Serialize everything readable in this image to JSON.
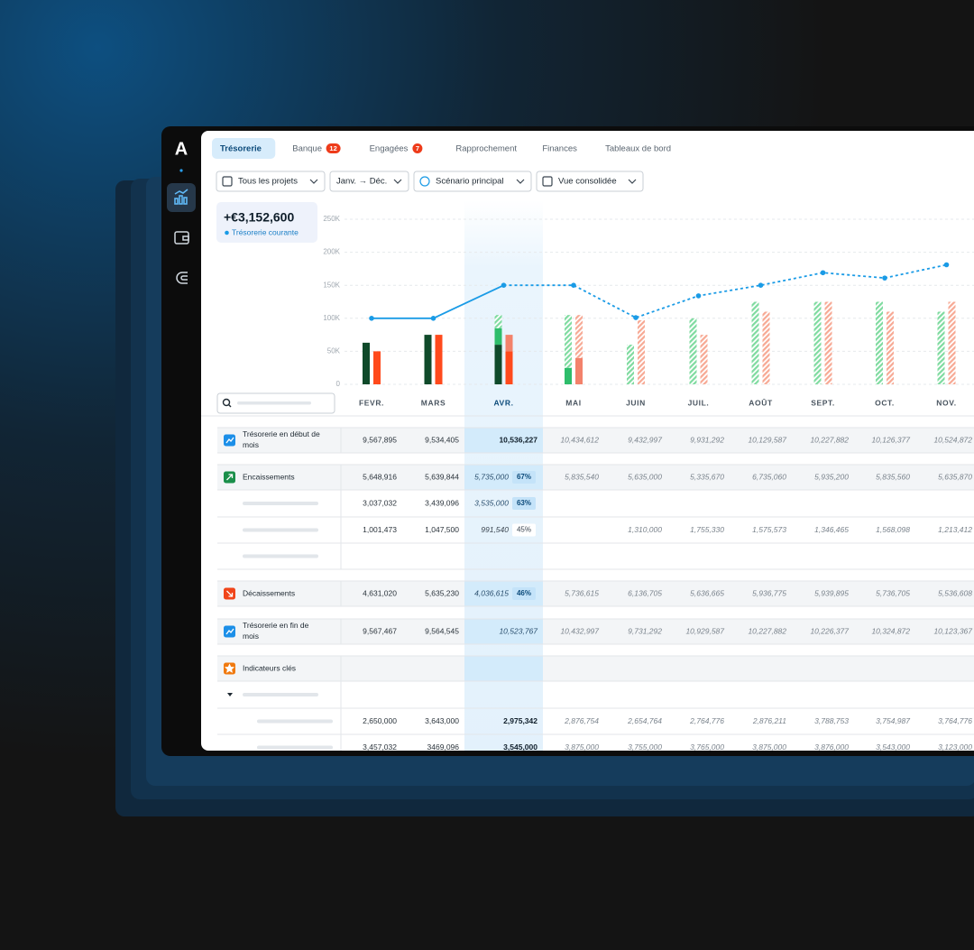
{
  "logo": "A",
  "tabs": [
    {
      "label": "Trésorerie"
    },
    {
      "label": "Banque",
      "badge": "12"
    },
    {
      "label": "Engagées",
      "badge": "7"
    },
    {
      "label": "Rapprochement"
    },
    {
      "label": "Finances"
    },
    {
      "label": "Tableaux de bord"
    }
  ],
  "filters": [
    "Tous les projets",
    "Janv. → Déc.",
    "Scénario principal",
    "Vue consolidée"
  ],
  "kpi": {
    "value": "+€3,152,600",
    "label": "Trésorerie courante"
  },
  "chart_data": {
    "type": "bar",
    "categories": [
      "FEVR.",
      "MARS",
      "AVR.",
      "MAI",
      "JUIN",
      "JUIL.",
      "AOÛT",
      "SEPT.",
      "OCT.",
      "NOV."
    ],
    "highlight": 2,
    "ylim": [
      0,
      250000
    ],
    "yticks": [
      0,
      {
        "value": 50000,
        "label": "50K"
      },
      {
        "value": 100000,
        "label": "100K"
      },
      {
        "value": 150000,
        "label": "150K"
      },
      {
        "value": 200000,
        "label": "200K"
      },
      {
        "value": 250000,
        "label": "250K"
      }
    ],
    "grid": true,
    "series": [
      {
        "color": "#0f4a2a",
        "stack": "in",
        "values": [
          63000,
          75000,
          60000,
          null,
          null,
          null,
          null,
          null,
          null,
          null
        ]
      },
      {
        "color": "#2ebd6b",
        "stack": "in",
        "values": [
          null,
          null,
          25000,
          25000,
          null,
          null,
          null,
          null,
          null,
          null
        ]
      },
      {
        "color": "#7fdba0",
        "stack": "in",
        "hatched": true,
        "values": [
          null,
          null,
          20000,
          80000,
          60000,
          100000,
          125000,
          125000,
          125000,
          110000
        ]
      },
      {
        "color": "#ff4a1c",
        "stack": "out",
        "values": [
          50000,
          75000,
          50000,
          null,
          null,
          null,
          null,
          null,
          null,
          null
        ]
      },
      {
        "color": "#f3826b",
        "stack": "out",
        "values": [
          null,
          null,
          25000,
          40000,
          null,
          null,
          null,
          null,
          null,
          null
        ]
      },
      {
        "color": "#f7a994",
        "stack": "out",
        "hatched": true,
        "values": [
          null,
          null,
          null,
          65000,
          97000,
          75000,
          110000,
          125000,
          110000,
          125000
        ]
      }
    ],
    "line": {
      "color": "#1a9be6",
      "dashed_from": 2,
      "values": [
        100000,
        100000,
        150000,
        150000,
        101000,
        134000,
        150000,
        169000,
        161000,
        181000
      ]
    }
  },
  "table": {
    "rows": [
      {
        "label": "Trésorerie en début de mois",
        "cells": [
          "9,567,895",
          "9,534,405",
          "10,536,227",
          "10,434,612",
          "9,432,997",
          "9,931,292",
          "10,129,587",
          "10,227,882",
          "10,126,377",
          "10,524,872"
        ]
      },
      {
        "label": "Encaissements",
        "cells": [
          "5,648,916",
          "5,639,844",
          {
            "value": "5,735,000",
            "badge": "67%"
          },
          "5,835,540",
          "5,635,000",
          "5,335,670",
          "6,735,060",
          "5,935,200",
          "5,835,560",
          "5,635,870"
        ]
      },
      {
        "cells": [
          "3,037,032",
          "3,439,096",
          {
            "value": "3,535,000",
            "badge": "63%"
          },
          null,
          null,
          null,
          null,
          null,
          null,
          null
        ]
      },
      {
        "cells": [
          "1,001,473",
          "1,047,500",
          {
            "value": "991,540",
            "badge": "45%"
          },
          null,
          "1,310,000",
          "1,755,330",
          "1,575,573",
          "1,346,465",
          "1,568,098",
          "1,213,412"
        ]
      },
      {
        "cells": [
          null,
          null,
          null,
          null,
          null,
          null,
          null,
          null,
          null,
          null
        ]
      },
      {
        "label": "Décaissements",
        "cells": [
          "4,631,020",
          "5,635,230",
          {
            "value": "4,036,615",
            "badge": "46%"
          },
          "5,736,615",
          "6,136,705",
          "5,636,665",
          "5,936,775",
          "5,939,895",
          "5,736,705",
          "5,536,608"
        ]
      },
      {
        "label": "Trésorerie en fin de mois",
        "cells": [
          "9,567,467",
          "9,564,545",
          "10,523,767",
          "10,432,997",
          "9,731,292",
          "10,929,587",
          "10,227,882",
          "10,226,377",
          "10,324,872",
          "10,123,367"
        ]
      },
      {
        "label": "Indicateurs clés",
        "cells": [
          null,
          null,
          null,
          null,
          null,
          null,
          null,
          null,
          null,
          null
        ]
      },
      {
        "cells": [
          null,
          null,
          null,
          null,
          null,
          null,
          null,
          null,
          null,
          null
        ]
      },
      {
        "cells": [
          "2,650,000",
          "3,643,000",
          "2,975,342",
          "2,876,754",
          "2,654,764",
          "2,764,776",
          "2,876,211",
          "3,788,753",
          "3,754,987",
          "3,764,776"
        ]
      },
      {
        "cells": [
          "3,457,032",
          "3469,096",
          "3,545,000",
          "3,875,000",
          "3,755,000",
          "3,765,000",
          "3,875,000",
          "3,876,000",
          "3,543,000",
          "3,123,000"
        ]
      }
    ]
  }
}
